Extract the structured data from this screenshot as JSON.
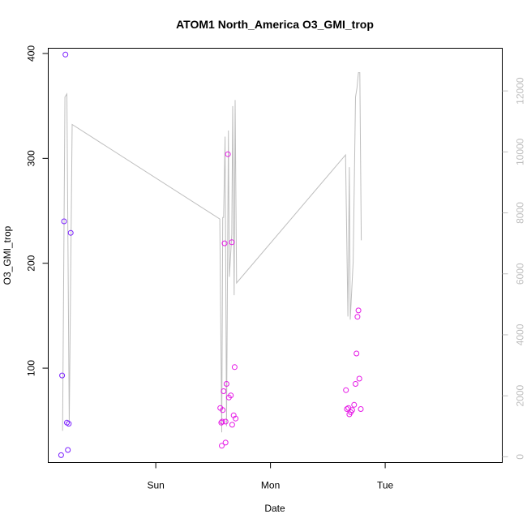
{
  "chart_data": {
    "type": "scatter",
    "title": "ATOM1 North_America O3_GMI_trop",
    "xlabel": "Date",
    "ylabel": "O3_GMI_trop",
    "x_axis": {
      "range_hours": [
        -22.5,
        72.5
      ],
      "ticks": [
        {
          "label": "Sun",
          "value": 0
        },
        {
          "label": "Mon",
          "value": 24
        },
        {
          "label": "Tue",
          "value": 48
        }
      ]
    },
    "y_axis_left": {
      "range": [
        10,
        405
      ],
      "ticks": [
        {
          "label": "100",
          "value": 100
        },
        {
          "label": "200",
          "value": 200
        },
        {
          "label": "300",
          "value": 300
        },
        {
          "label": "400",
          "value": 400
        }
      ]
    },
    "y_axis_right": {
      "range": [
        -190,
        13400
      ],
      "color": "#bebebe",
      "ticks": [
        {
          "label": "0",
          "value": 0
        },
        {
          "label": "2000",
          "value": 2000
        },
        {
          "label": "4000",
          "value": 4000
        },
        {
          "label": "6000",
          "value": 6000
        },
        {
          "label": "8000",
          "value": 8000
        },
        {
          "label": "10000",
          "value": 10000
        },
        {
          "label": "12000",
          "value": 12000
        }
      ]
    },
    "grid": false,
    "series": [
      {
        "kind": "points",
        "axis": "left",
        "color": "#7a1fff",
        "points": [
          {
            "x": -19.8,
            "y": 17
          },
          {
            "x": -19.6,
            "y": 93
          },
          {
            "x": -19.2,
            "y": 240
          },
          {
            "x": -18.9,
            "y": 399
          },
          {
            "x": -18.6,
            "y": 48
          },
          {
            "x": -18.4,
            "y": 22
          },
          {
            "x": -18.2,
            "y": 47
          },
          {
            "x": -17.8,
            "y": 229
          }
        ]
      },
      {
        "kind": "points",
        "axis": "left",
        "color": "#e619e6",
        "points": [
          {
            "x": 13.5,
            "y": 62
          },
          {
            "x": 13.7,
            "y": 48
          },
          {
            "x": 13.8,
            "y": 26
          },
          {
            "x": 13.9,
            "y": 49
          },
          {
            "x": 14.0,
            "y": 60
          },
          {
            "x": 14.2,
            "y": 78
          },
          {
            "x": 14.4,
            "y": 219
          },
          {
            "x": 14.6,
            "y": 29
          },
          {
            "x": 14.6,
            "y": 49
          },
          {
            "x": 14.8,
            "y": 85
          },
          {
            "x": 15.1,
            "y": 304
          },
          {
            "x": 15.3,
            "y": 72
          },
          {
            "x": 15.7,
            "y": 74
          },
          {
            "x": 15.9,
            "y": 220
          },
          {
            "x": 16.0,
            "y": 46
          },
          {
            "x": 16.3,
            "y": 55
          },
          {
            "x": 16.5,
            "y": 101
          },
          {
            "x": 16.7,
            "y": 52
          },
          {
            "x": 39.8,
            "y": 79
          },
          {
            "x": 40.0,
            "y": 61
          },
          {
            "x": 40.3,
            "y": 62
          },
          {
            "x": 40.5,
            "y": 56
          },
          {
            "x": 40.8,
            "y": 58
          },
          {
            "x": 41.1,
            "y": 60
          },
          {
            "x": 41.5,
            "y": 65
          },
          {
            "x": 41.8,
            "y": 85
          },
          {
            "x": 42.0,
            "y": 114
          },
          {
            "x": 42.2,
            "y": 149
          },
          {
            "x": 42.4,
            "y": 155
          },
          {
            "x": 42.6,
            "y": 90
          },
          {
            "x": 42.9,
            "y": 61
          }
        ]
      },
      {
        "kind": "line",
        "axis": "right",
        "color": "#bebebe",
        "points": [
          {
            "x": -19.5,
            "y": 850
          },
          {
            "x": -19.0,
            "y": 11800
          },
          {
            "x": -18.6,
            "y": 11900
          },
          {
            "x": -18.1,
            "y": 1100
          },
          {
            "x": -17.5,
            "y": 10900
          },
          {
            "x": 13.4,
            "y": 7800
          },
          {
            "x": 13.8,
            "y": 800
          },
          {
            "x": 14.0,
            "y": 7850
          },
          {
            "x": 14.2,
            "y": 7850
          },
          {
            "x": 14.5,
            "y": 10500
          },
          {
            "x": 14.8,
            "y": 1000
          },
          {
            "x": 15.2,
            "y": 10700
          },
          {
            "x": 15.4,
            "y": 5900
          },
          {
            "x": 15.9,
            "y": 7300
          },
          {
            "x": 16.1,
            "y": 11500
          },
          {
            "x": 16.4,
            "y": 5300
          },
          {
            "x": 16.6,
            "y": 11700
          },
          {
            "x": 16.9,
            "y": 5700
          },
          {
            "x": 39.7,
            "y": 9900
          },
          {
            "x": 40.2,
            "y": 4600
          },
          {
            "x": 40.5,
            "y": 9500
          },
          {
            "x": 40.7,
            "y": 4500
          },
          {
            "x": 41.3,
            "y": 6400
          },
          {
            "x": 41.8,
            "y": 11800
          },
          {
            "x": 42.1,
            "y": 12100
          },
          {
            "x": 42.4,
            "y": 12600
          },
          {
            "x": 42.7,
            "y": 12600
          },
          {
            "x": 43.0,
            "y": 7100
          }
        ]
      }
    ]
  }
}
